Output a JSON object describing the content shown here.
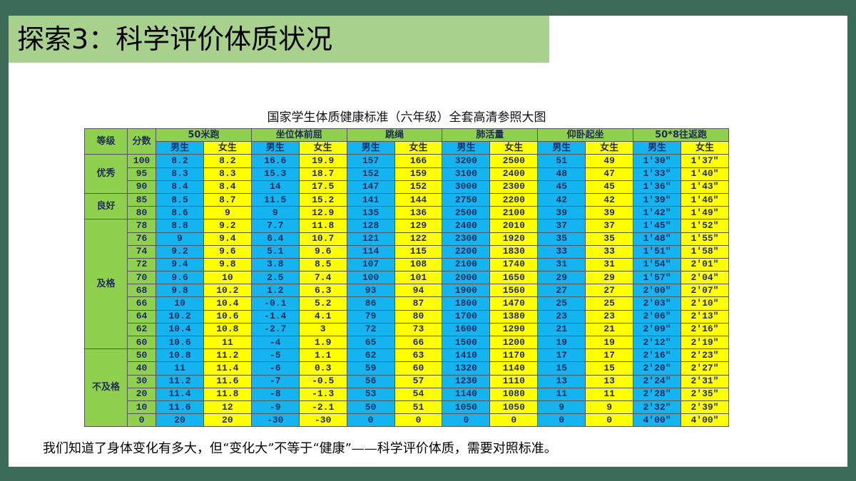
{
  "header": {
    "title": "探索3：科学评价体质状况"
  },
  "table": {
    "caption": "国家学生体质健康标准（六年级）全套高清参照大图",
    "head1": [
      "等级",
      "分数",
      "50米跑",
      "坐位体前屈",
      "跳绳",
      "肺活量",
      "仰卧起坐",
      "50*8往返跑"
    ],
    "head2": [
      "男生",
      "女生",
      "男生",
      "女生",
      "男生",
      "女生",
      "男生",
      "女生",
      "男生",
      "女生",
      "男生",
      "女生"
    ],
    "groups": [
      {
        "level": "优秀",
        "rows": [
          [
            "100",
            "8.2",
            "8.2",
            "16.6",
            "19.9",
            "157",
            "166",
            "3200",
            "2500",
            "51",
            "49",
            "1′30″",
            "1′37″"
          ],
          [
            "95",
            "8.3",
            "8.3",
            "15.3",
            "18.7",
            "152",
            "159",
            "3100",
            "2400",
            "48",
            "47",
            "1′33″",
            "1′40″"
          ],
          [
            "90",
            "8.4",
            "8.4",
            "14",
            "17.5",
            "147",
            "152",
            "3000",
            "2300",
            "45",
            "45",
            "1′36″",
            "1′43″"
          ]
        ]
      },
      {
        "level": "良好",
        "rows": [
          [
            "85",
            "8.5",
            "8.7",
            "11.5",
            "15.2",
            "141",
            "144",
            "2750",
            "2200",
            "42",
            "42",
            "1′39″",
            "1′46″"
          ],
          [
            "80",
            "8.6",
            "9",
            "9",
            "12.9",
            "135",
            "136",
            "2500",
            "2100",
            "39",
            "39",
            "1′42″",
            "1′49″"
          ]
        ]
      },
      {
        "level": "及格",
        "rows": [
          [
            "78",
            "8.8",
            "9.2",
            "7.7",
            "11.8",
            "128",
            "129",
            "2400",
            "2010",
            "37",
            "37",
            "1′45″",
            "1′52″"
          ],
          [
            "76",
            "9",
            "9.4",
            "6.4",
            "10.7",
            "121",
            "122",
            "2300",
            "1920",
            "35",
            "35",
            "1′48″",
            "1′55″"
          ],
          [
            "74",
            "9.2",
            "9.6",
            "5.1",
            "9.6",
            "114",
            "115",
            "2200",
            "1830",
            "33",
            "33",
            "1′51″",
            "1′58″"
          ],
          [
            "72",
            "9.4",
            "9.8",
            "3.8",
            "8.5",
            "107",
            "108",
            "2100",
            "1740",
            "31",
            "31",
            "1′54″",
            "2′01″"
          ],
          [
            "70",
            "9.6",
            "10",
            "2.5",
            "7.4",
            "100",
            "101",
            "2000",
            "1650",
            "29",
            "29",
            "1′57″",
            "2′04″"
          ],
          [
            "68",
            "9.8",
            "10.2",
            "1.2",
            "6.3",
            "93",
            "94",
            "1900",
            "1560",
            "27",
            "27",
            "2′00″",
            "2′07″"
          ],
          [
            "66",
            "10",
            "10.4",
            "-0.1",
            "5.2",
            "86",
            "87",
            "1800",
            "1470",
            "25",
            "25",
            "2′03″",
            "2′10″"
          ],
          [
            "64",
            "10.2",
            "10.6",
            "-1.4",
            "4.1",
            "79",
            "80",
            "1700",
            "1380",
            "23",
            "23",
            "2′06″",
            "2′13″"
          ],
          [
            "62",
            "10.4",
            "10.8",
            "-2.7",
            "3",
            "72",
            "73",
            "1600",
            "1290",
            "21",
            "21",
            "2′09″",
            "2′16″"
          ],
          [
            "60",
            "10.6",
            "11",
            "-4",
            "1.9",
            "65",
            "66",
            "1500",
            "1200",
            "19",
            "19",
            "2′12″",
            "2′19″"
          ]
        ]
      },
      {
        "level": "不及格",
        "rows": [
          [
            "50",
            "10.8",
            "11.2",
            "-5",
            "1.1",
            "62",
            "63",
            "1410",
            "1170",
            "17",
            "17",
            "2′16″",
            "2′23″"
          ],
          [
            "40",
            "11",
            "11.4",
            "-6",
            "0.3",
            "59",
            "60",
            "1320",
            "1140",
            "15",
            "15",
            "2′20″",
            "2′27″"
          ],
          [
            "30",
            "11.2",
            "11.6",
            "-7",
            "-0.5",
            "56",
            "57",
            "1230",
            "1110",
            "13",
            "13",
            "2′24″",
            "2′31″"
          ],
          [
            "20",
            "11.4",
            "11.8",
            "-8",
            "-1.3",
            "53",
            "54",
            "1140",
            "1080",
            "11",
            "11",
            "2′28″",
            "2′35″"
          ],
          [
            "10",
            "11.6",
            "12",
            "-9",
            "-2.1",
            "50",
            "51",
            "1050",
            "1050",
            "9",
            "9",
            "2′32″",
            "2′39″"
          ],
          [
            "0",
            "20",
            "20",
            "-30",
            "-30",
            "0",
            "0",
            "0",
            "0",
            "0",
            "0",
            "4′00″",
            "4′00″"
          ]
        ]
      }
    ]
  },
  "footer": {
    "text": "我们知道了身体变化有多大，但“变化大”不等于“健康”——科学评价体质，需要对照标准。"
  }
}
